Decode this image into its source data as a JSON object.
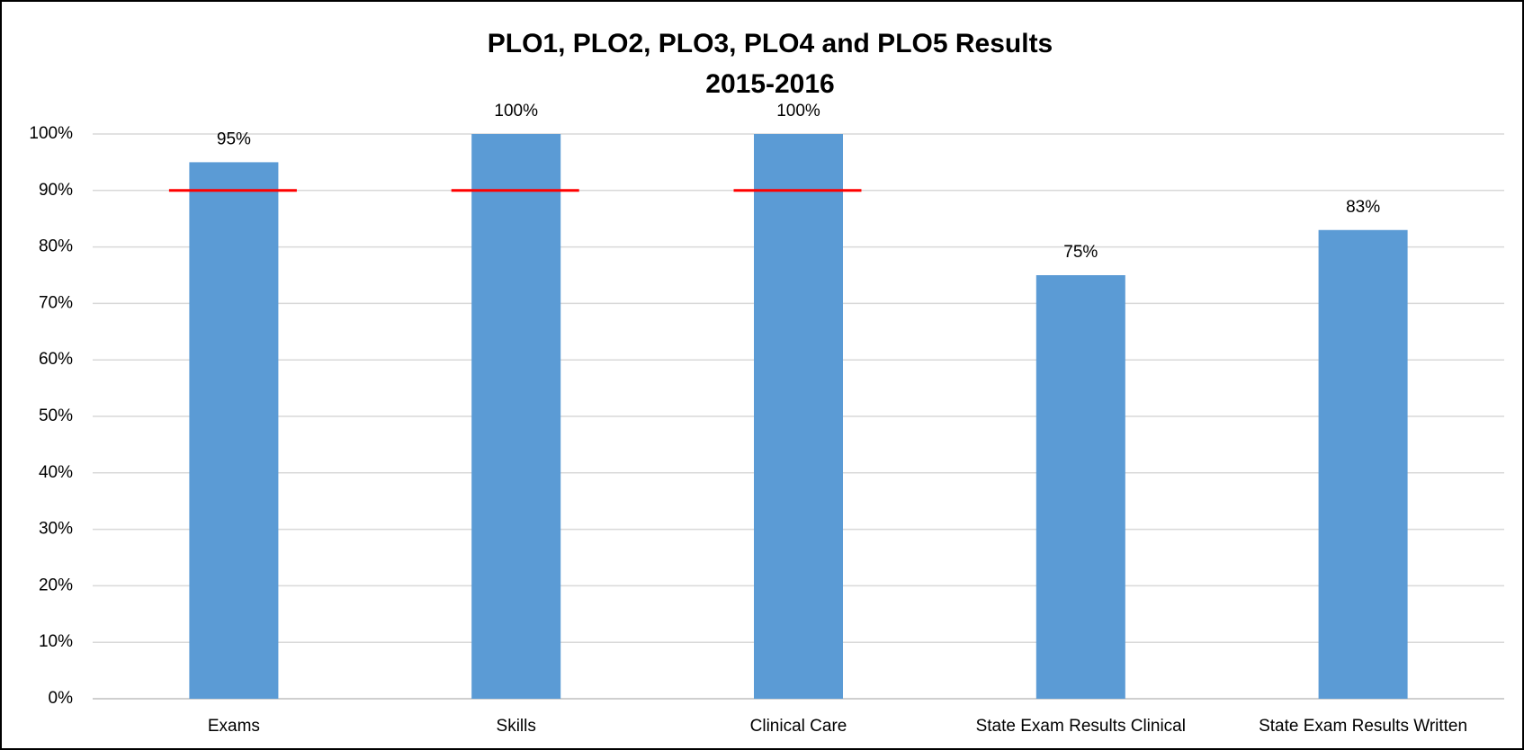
{
  "chart_data": {
    "type": "bar",
    "title": "PLO1, PLO2, PLO3, PLO4 and PLO5 Results",
    "subtitle": "2015-2016",
    "categories": [
      "Exams",
      "Skills",
      "Clinical Care",
      "State Exam Results Clinical",
      "State Exam Results Written"
    ],
    "values": [
      95,
      100,
      100,
      75,
      83
    ],
    "value_labels": [
      "95%",
      "100%",
      "100%",
      "75%",
      "83%"
    ],
    "color": "#5b9bd5",
    "targets": [
      90,
      90,
      90,
      null,
      null
    ],
    "target_color": "#ff0000",
    "ylim": [
      0,
      100
    ],
    "yticks": [
      {
        "value": 0,
        "label": "0%"
      },
      {
        "value": 10,
        "label": "10%"
      },
      {
        "value": 20,
        "label": "20%"
      },
      {
        "value": 30,
        "label": "30%"
      },
      {
        "value": 40,
        "label": "40%"
      },
      {
        "value": 50,
        "label": "50%"
      },
      {
        "value": 60,
        "label": "60%"
      },
      {
        "value": 70,
        "label": "70%"
      },
      {
        "value": 80,
        "label": "80%"
      },
      {
        "value": 90,
        "label": "90%"
      },
      {
        "value": 100,
        "label": "100%"
      }
    ],
    "grid": true
  }
}
